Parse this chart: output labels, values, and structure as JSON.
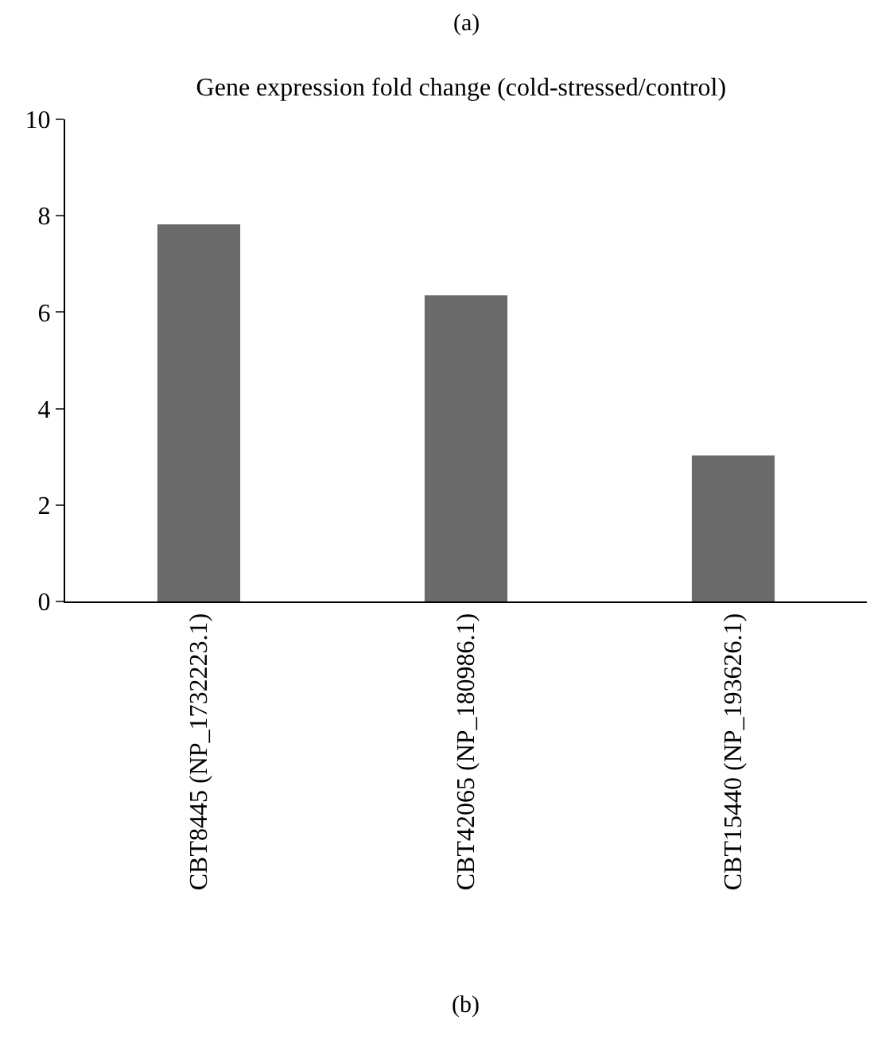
{
  "chart_data": {
    "type": "bar",
    "title": "Gene expression fold change (cold-stressed/control)",
    "categories": [
      "CBT8445 (NP_1732223.1)",
      "CBT42065 (NP_180986.1)",
      "CBT15440 (NP_193626.1)"
    ],
    "values": [
      7.82,
      6.35,
      3.03
    ],
    "color": "#6b6a6b",
    "ylim": [
      0,
      10
    ],
    "yticks": [
      0,
      2,
      4,
      6,
      8,
      10
    ],
    "annotations": [
      "(a)",
      "(b)"
    ]
  }
}
